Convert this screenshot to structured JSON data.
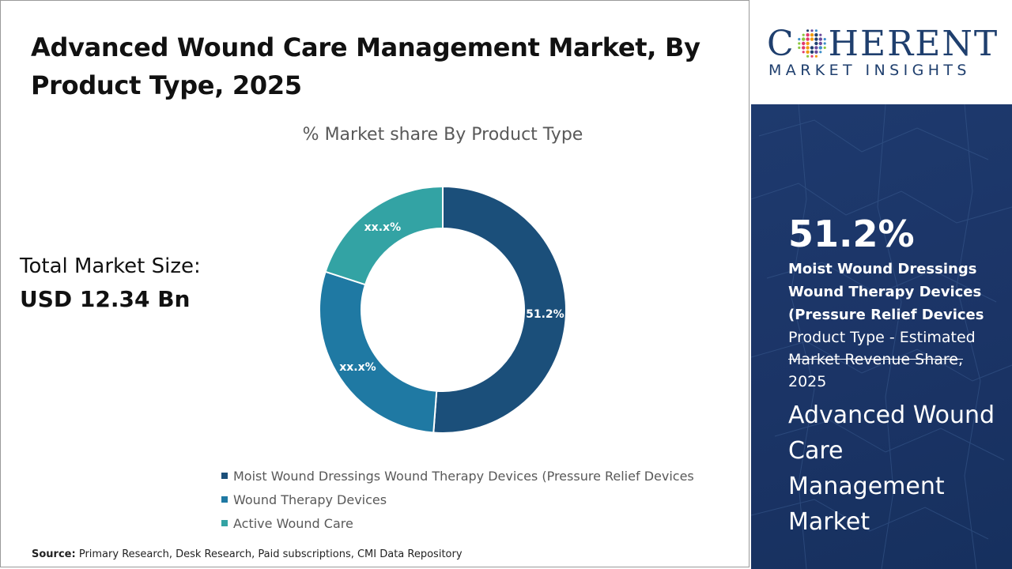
{
  "title": "Advanced Wound Care Management Market, By Product Type, 2025",
  "total_market": {
    "label": "Total Market Size:",
    "value": "USD 12.34 Bn"
  },
  "source": {
    "label": "Source:",
    "text": "Primary Research, Desk Research, Paid subscriptions, CMI Data Repository"
  },
  "logo": {
    "brand_left": "C",
    "brand_right": "HERENT",
    "tagline": "MARKET INSIGHTS"
  },
  "side_panel": {
    "highlight_value": "51.2%",
    "segment_name": "Moist Wound Dressings Wound Therapy Devices (Pressure Relief Devices",
    "desc_line1": "Product Type - Estimated",
    "desc_line2": "Market Revenue Share,",
    "desc_line3": "2025",
    "market_name": "Advanced Wound Care Management Market"
  },
  "colors": {
    "series_1": "#1b4f7a",
    "series_2": "#1f79a3",
    "series_3": "#33a3a4",
    "brand_navy": "#1f3f6e"
  },
  "chart_data": {
    "type": "pie",
    "title": "% Market share By Product Type",
    "donut": true,
    "legend_position": "bottom",
    "categories": [
      "Moist Wound Dressings Wound Therapy Devices (Pressure Relief Devices",
      "Wound Therapy Devices",
      "Active Wound Care"
    ],
    "values": [
      51.2,
      28.8,
      20.0
    ],
    "data_labels": [
      "51.2%",
      "xx.x%",
      "xx.x%"
    ]
  }
}
